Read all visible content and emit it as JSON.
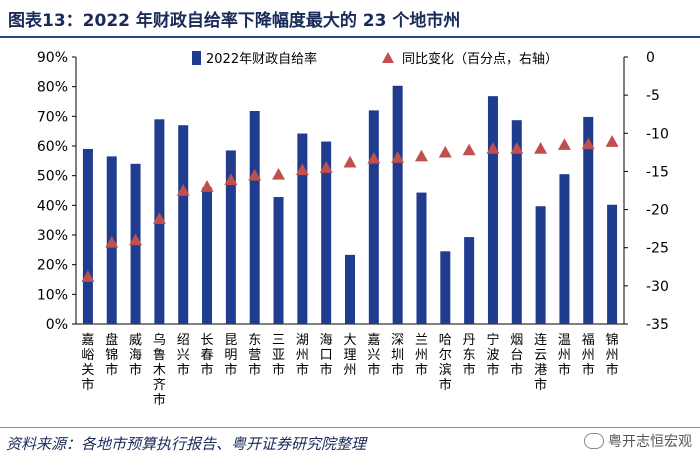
{
  "header": {
    "title": "图表13：2022 年财政自给率下降幅度最大的 23 个地市州"
  },
  "footer": {
    "source": "资料来源：各地市预算执行报告、粤开证券研究院整理",
    "brand": "粤开志恒宏观"
  },
  "colors": {
    "bar": "#1f3c8f",
    "marker": "#c0504d",
    "text": "#1a2b5a",
    "grid": "#000000"
  },
  "chart_data": {
    "type": "bar",
    "title": "",
    "categories": [
      "嘉峪关市",
      "盘锦市",
      "威海市",
      "乌鲁木齐市",
      "绍兴市",
      "长春市",
      "昆明市",
      "东营市",
      "三亚市",
      "湖州市",
      "海口市",
      "大理州",
      "嘉兴市",
      "深圳市",
      "兰州市",
      "哈尔滨市",
      "丹东市",
      "宁波市",
      "烟台市",
      "连云港市",
      "温州市",
      "福州市",
      "锦州市"
    ],
    "series": [
      {
        "name": "2022年财政自给率",
        "type": "bar",
        "axis": "left",
        "values": [
          59,
          56.5,
          54,
          69,
          67,
          46,
          58.5,
          71.8,
          42.8,
          64.2,
          61.5,
          23.3,
          72,
          80.3,
          44.3,
          24.5,
          29.3,
          76.8,
          68.7,
          39.7,
          50.5,
          69.8,
          40.2
        ]
      },
      {
        "name": "同比变化（百分点，右轴）",
        "type": "scatter",
        "marker": "triangle",
        "axis": "right",
        "values": [
          -28.8,
          -24.3,
          -24,
          -21.2,
          -17.5,
          -17,
          -16.1,
          -15.5,
          -15.4,
          -14.8,
          -14.5,
          -13.8,
          -13.3,
          -13.2,
          -13,
          -12.5,
          -12.2,
          -12,
          -12,
          -12,
          -11.5,
          -11.4,
          -11.1
        ]
      }
    ],
    "ylim_left": [
      0,
      90
    ],
    "yticks_left": [
      "0%",
      "10%",
      "20%",
      "30%",
      "40%",
      "50%",
      "60%",
      "70%",
      "80%",
      "90%"
    ],
    "ylim_right": [
      -35,
      0
    ],
    "yticks_right": [
      "-35",
      "-30",
      "-25",
      "-20",
      "-15",
      "-10",
      "-5",
      "0"
    ],
    "legend": [
      {
        "label": "2022年财政自给率",
        "symbol": "bar"
      },
      {
        "label": "同比变化（百分点，右轴）",
        "symbol": "triangle"
      }
    ],
    "legend_position": "top"
  }
}
